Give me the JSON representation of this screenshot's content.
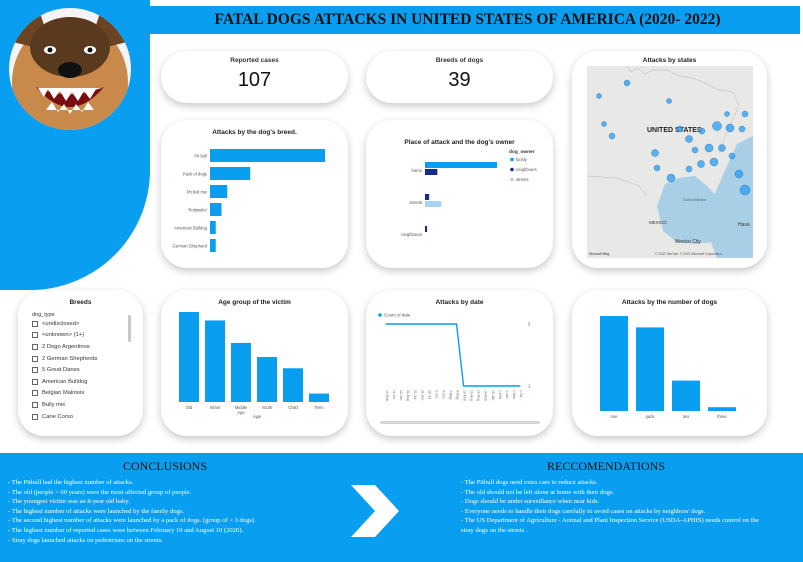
{
  "title": "FATAL DOGS ATTACKS IN UNITED STATES OF AMERICA (2020- 2022)",
  "kpis": [
    {
      "label": "Reported cases",
      "value": "107"
    },
    {
      "label": "Breeds of dogs",
      "value": "39"
    }
  ],
  "slicer": {
    "title": "Breeds",
    "field": "dog_type",
    "items": [
      "<undisclosed>",
      "<unknown> (1+)",
      "2 Dogo Argentinos",
      "2 German Shepherds",
      "5 Great Danes",
      "American Bulldog",
      "Belgian Malinois",
      "Bully mix",
      "Cane Corso"
    ]
  },
  "conclusions": {
    "title": "CONCLUSIONS",
    "items": [
      "- The Pitbull had the highest number of attacks.",
      "- The old (people > 60 years) were the most affected group of people.",
      "- The youngest victim was an 8-year old baby.",
      "- The highest number of attacks were launched by the family dogs.",
      "- The second highest number of attacks were launched by a pack of dogs. (group of > 3 dogs).",
      "- The  highest number of reported cases were between  February 10 and  August 10 (2020).",
      "- Stray dogs launched attacks on pedestrians  on the streets."
    ]
  },
  "recommendations": {
    "title": "RECCOMENDATIONS",
    "items": [
      "- The Pitbull dogs need extra care to reduce attacks.",
      "- The old should not be left alone at home with their dogs.",
      "- Dogs should be under surveillance when near kids.",
      "- Everyone needs to handle their dogs carefully to avoid cases on attacks by neighbors' dogs.",
      "- The US  Department of Agriculture - Animal and Plant Inspection Service (USDA-APHIS) needs control on the stray dogs on the streets ."
    ]
  },
  "map": {
    "title": "Attacks by states",
    "country_label": "UNITED STATES",
    "mexico_label": "MEXICO",
    "mexico_city_label": "Mexico City",
    "gulf_label": "Gulf of Mexico",
    "havana_label": "Hava",
    "credit_left": "Microsoft Bing",
    "credit_right": "© 2022 TomTom, © 2022 Microsoft Corporation",
    "colors": {
      "water": "#a9cfe6",
      "land": "#e8e8e6",
      "bubble": "#2a9df4"
    }
  },
  "chart_data": [
    {
      "type": "bar",
      "orientation": "horizontal",
      "title": "Attacks by the dog's breed.",
      "categories": [
        "Pit bull",
        "Pack of dogs",
        "Pit bull mix",
        "Rottweiler",
        "American Bulldog",
        "German Shepherd"
      ],
      "values": [
        40,
        14,
        6,
        4,
        2,
        2
      ],
      "color": "#0a9ef0"
    },
    {
      "type": "bar",
      "orientation": "horizontal",
      "title": "Place of attack and the dog's owner",
      "legend_title": "dog_owner",
      "categories": [
        "home",
        "streets",
        "neighbours"
      ],
      "series": [
        {
          "name": "family",
          "values": [
            35,
            0,
            0
          ],
          "color": "#0a9ef0"
        },
        {
          "name": "neighbours",
          "values": [
            6,
            2,
            1
          ],
          "color": "#122b8c"
        },
        {
          "name": "streets",
          "values": [
            0,
            8,
            0
          ],
          "color": "#a9d3f5"
        }
      ]
    },
    {
      "type": "bar",
      "title": "Age group of the victim",
      "xlabel": "Age",
      "categories": [
        "Old",
        "Infant",
        "Middle Age",
        "Youth",
        "Child",
        "Teen"
      ],
      "values": [
        32,
        29,
        21,
        16,
        12,
        3
      ],
      "color": "#0a9ef0"
    },
    {
      "type": "line",
      "title": "Attacks by date",
      "legend": [
        "Count of date"
      ],
      "yticks": [
        "1",
        "2"
      ],
      "x": [
        "10-Feb",
        "11-Jul",
        "12-Jun",
        "21-Aug",
        "21-Jul",
        "21-Jun",
        "25-Jul",
        "2-Jun",
        "3-Jun",
        "7-May",
        "9-May",
        "10-Feb",
        "10-Aug",
        "12-Aug",
        "14-Feb",
        "15-Jan",
        "1-Feb",
        "1-Jan",
        "1-Mar",
        "1-Jul"
      ],
      "values": [
        2,
        2,
        2,
        2,
        2,
        2,
        2,
        2,
        2,
        2,
        2,
        1,
        1,
        1,
        1,
        1,
        1,
        1,
        1,
        1
      ],
      "ylim": [
        1,
        2
      ],
      "color": "#0a9ef0"
    },
    {
      "type": "bar",
      "title": "Attacks by the number of dogs",
      "categories": [
        "one",
        "pack",
        "two",
        "three"
      ],
      "values": [
        50,
        44,
        16,
        2
      ],
      "color": "#0a9ef0"
    }
  ]
}
